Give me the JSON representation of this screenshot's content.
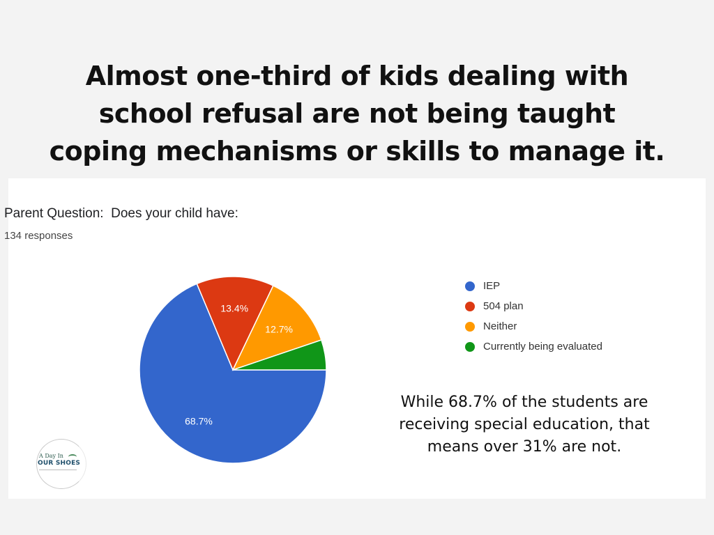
{
  "headline": {
    "lines": [
      "Almost one-third of kids dealing with",
      "school refusal are not being taught",
      "coping mechanisms or skills to manage it."
    ]
  },
  "chart_data": {
    "type": "pie",
    "title": "Parent Question:  Does your child have:",
    "subtitle": "134 responses",
    "categories": [
      "IEP",
      "504 plan",
      "Neither",
      "Currently being evaluated"
    ],
    "values": [
      68.7,
      13.4,
      12.7,
      5.2
    ],
    "data_labels": [
      "68.7%",
      "13.4%",
      "12.7%",
      ""
    ],
    "colors": [
      "#3366cc",
      "#dc3912",
      "#ff9900",
      "#109618"
    ],
    "legend_position": "right"
  },
  "note": {
    "lines": [
      "While 68.7% of the students are",
      "receiving special education, that",
      "means over 31% are not."
    ]
  },
  "logo": {
    "top_text": "A Day In",
    "main_text": "OUR SHOES"
  }
}
